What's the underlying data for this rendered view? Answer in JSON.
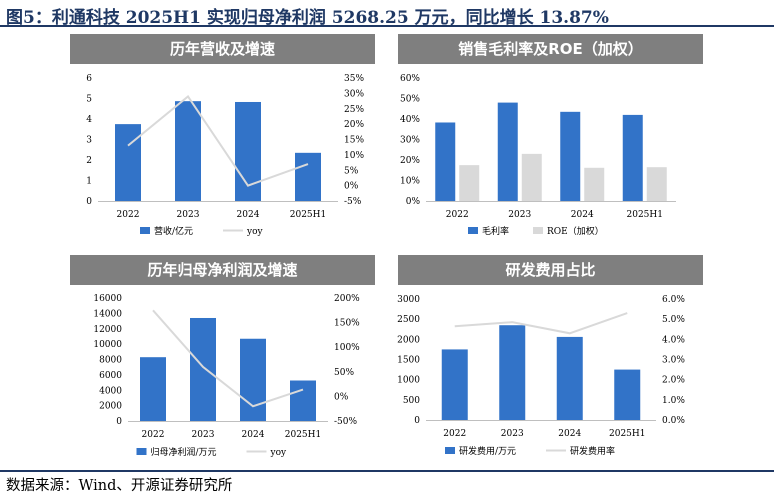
{
  "figure": {
    "title": "图5：利通科技 2025H1 实现归母净利润 5268.25 万元，同比增长 13.87%",
    "source": "数据来源：Wind、开源证券研究所"
  },
  "colors": {
    "bar": "#3273c8",
    "bar_secondary": "#d9d9d9",
    "line": "#d9d9d9",
    "header": "#7f7f7f",
    "rule": "#1f3864"
  },
  "chart_data": [
    {
      "type": "bar",
      "title": "历年营收及增速",
      "categories": [
        "2022",
        "2023",
        "2024",
        "2025H1"
      ],
      "series": [
        {
          "name": "营收/亿元",
          "type": "bar",
          "axis": "left",
          "values": [
            3.75,
            4.87,
            4.83,
            2.35
          ]
        },
        {
          "name": "yoy",
          "type": "line",
          "axis": "right",
          "values": [
            13,
            29,
            0,
            7
          ]
        }
      ],
      "ylim": [
        0,
        6
      ],
      "yticks": [
        "0",
        "1",
        "2",
        "3",
        "4",
        "5",
        "6"
      ],
      "y2lim": [
        -5,
        35
      ],
      "y2ticks": [
        "-5%",
        "0%",
        "5%",
        "10%",
        "15%",
        "20%",
        "25%",
        "30%",
        "35%"
      ],
      "legend": "bottom",
      "grid": false
    },
    {
      "type": "bar",
      "title": "销售毛利率及ROE（加权）",
      "categories": [
        "2022",
        "2023",
        "2024",
        "2025H1"
      ],
      "series": [
        {
          "name": "毛利率",
          "type": "bar",
          "axis": "left",
          "values": [
            38.3,
            48.0,
            43.5,
            42.0
          ]
        },
        {
          "name": "ROE（加权）",
          "type": "bar",
          "axis": "left",
          "values": [
            17.5,
            23.0,
            16.2,
            16.5
          ]
        }
      ],
      "ylim": [
        0,
        60
      ],
      "yticks": [
        "0%",
        "10%",
        "20%",
        "30%",
        "40%",
        "50%",
        "60%"
      ],
      "legend": "bottom",
      "grid": false
    },
    {
      "type": "bar",
      "title": "历年归母净利润及增速",
      "categories": [
        "2022",
        "2023",
        "2024",
        "2025H1"
      ],
      "series": [
        {
          "name": "归母净利润/万元",
          "type": "bar",
          "axis": "left",
          "values": [
            8300,
            13400,
            10700,
            5268.25
          ]
        },
        {
          "name": "yoy",
          "type": "line",
          "axis": "right",
          "values": [
            175,
            60,
            -20,
            14
          ]
        }
      ],
      "ylim": [
        0,
        16000
      ],
      "yticks": [
        "0",
        "2000",
        "4000",
        "6000",
        "8000",
        "10000",
        "12000",
        "14000",
        "16000"
      ],
      "y2lim": [
        -50,
        200
      ],
      "y2ticks": [
        "-50%",
        "0%",
        "50%",
        "100%",
        "150%",
        "200%"
      ],
      "legend": "bottom",
      "grid": false
    },
    {
      "type": "bar",
      "title": "研发费用占比",
      "categories": [
        "2022",
        "2023",
        "2024",
        "2025H1"
      ],
      "series": [
        {
          "name": "研发费用/万元",
          "type": "bar",
          "axis": "left",
          "values": [
            1750,
            2350,
            2060,
            1250
          ]
        },
        {
          "name": "研发费用率",
          "type": "line",
          "axis": "right",
          "values": [
            4.65,
            4.85,
            4.3,
            5.3
          ]
        }
      ],
      "ylim": [
        0,
        3000
      ],
      "yticks": [
        "0",
        "500",
        "1000",
        "1500",
        "2000",
        "2500",
        "3000"
      ],
      "y2lim": [
        0,
        6
      ],
      "y2ticks": [
        "0.0%",
        "1.0%",
        "2.0%",
        "3.0%",
        "4.0%",
        "5.0%",
        "6.0%"
      ],
      "legend": "bottom",
      "grid": false
    }
  ]
}
